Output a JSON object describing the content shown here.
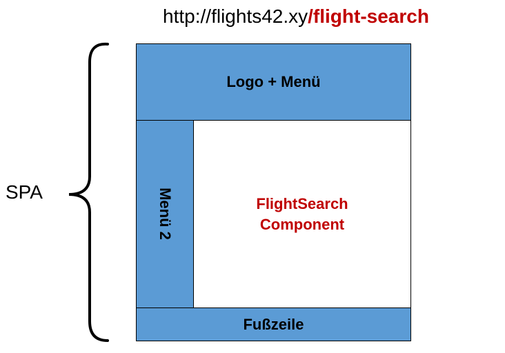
{
  "url": {
    "base": "http://flights42.xy",
    "path": "/flight-search"
  },
  "spa_label": "SPA",
  "layout": {
    "header": "Logo + Menü",
    "sidebar": "Menü 2",
    "content": {
      "line1": "FlightSearch",
      "line2": "Component"
    },
    "footer": "Fußzeile"
  },
  "colors": {
    "region_fill": "#5b9bd5",
    "highlight": "#c00000"
  }
}
